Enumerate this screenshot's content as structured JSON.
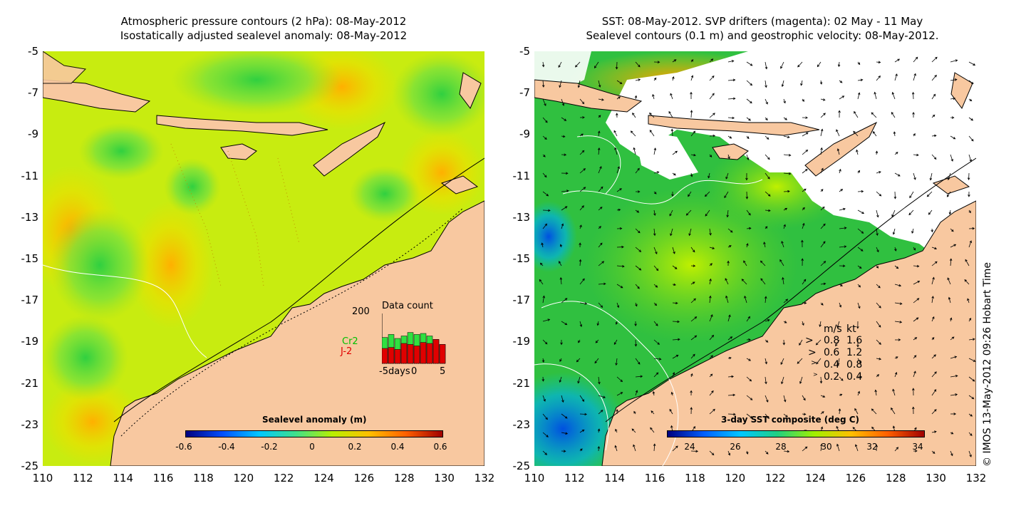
{
  "left_panel": {
    "title_line1": "Atmospheric pressure contours (2 hPa): 08-May-2012",
    "title_line2": "Isostatically adjusted sealevel anomaly: 08-May-2012",
    "colorbar": {
      "title": "Sealevel anomaly (m)",
      "ticks": [
        "-0.6",
        "-0.4",
        "-0.2",
        "0",
        "0.2",
        "0.4",
        "0.6"
      ],
      "colors": [
        "#00007f",
        "#0050ff",
        "#00c8ff",
        "#3fe08a",
        "#b8f000",
        "#ffc000",
        "#ff6000",
        "#a00000"
      ]
    },
    "inset": {
      "title": "Data count",
      "ymax_label": "200",
      "x_labels": [
        "-5days",
        "0",
        "5"
      ],
      "legend": [
        {
          "label": "Cr2",
          "color": "#00c000"
        },
        {
          "label": "J-2",
          "color": "#e00000"
        }
      ],
      "bars_red": [
        0.3,
        0.32,
        0.28,
        0.4,
        0.38,
        0.35,
        0.42,
        0.4,
        0.48,
        0.38
      ],
      "bars_green": [
        0.52,
        0.58,
        0.5,
        0.55,
        0.62,
        0.58,
        0.6,
        0.55,
        0.48,
        0.38
      ]
    }
  },
  "right_panel": {
    "title_line1": "SST: 08-May-2012. SVP drifters (magenta): 02 May - 11 May",
    "title_line2": "Sealevel contours (0.1 m) and geostrophic velocity: 08-May-2012.",
    "colorbar": {
      "title": "3-day SST composite (deg C)",
      "ticks": [
        "24",
        "26",
        "28",
        "30",
        "32",
        "34"
      ],
      "colors": [
        "#00007f",
        "#0060ff",
        "#00c8ff",
        "#20d080",
        "#a0f000",
        "#ffc000",
        "#ff6000",
        "#a00000"
      ]
    },
    "speed_legend": {
      "header_ms": "m/s",
      "header_kt": "kt",
      "rows": [
        {
          "ms": "0.8",
          "kt": "1.6"
        },
        {
          "ms": "0.6",
          "kt": "1.2"
        },
        {
          "ms": "0.4",
          "kt": "0.8"
        },
        {
          "ms": "0.2",
          "kt": "0.4"
        }
      ]
    },
    "credit": "© IMOS 13-May-2012 09:26 Hobart Time"
  },
  "axes": {
    "y_ticks": [
      "-5",
      "-7",
      "-9",
      "-11",
      "-13",
      "-15",
      "-17",
      "-19",
      "-21",
      "-23",
      "-25"
    ],
    "x_ticks": [
      "110",
      "112",
      "114",
      "116",
      "118",
      "120",
      "122",
      "124",
      "126",
      "128",
      "130",
      "132"
    ]
  },
  "colors": {
    "land": "#f8c8a0",
    "sea_green": "#a8e020",
    "sea_yellow": "#d8f000",
    "sst_green": "#30c040"
  }
}
